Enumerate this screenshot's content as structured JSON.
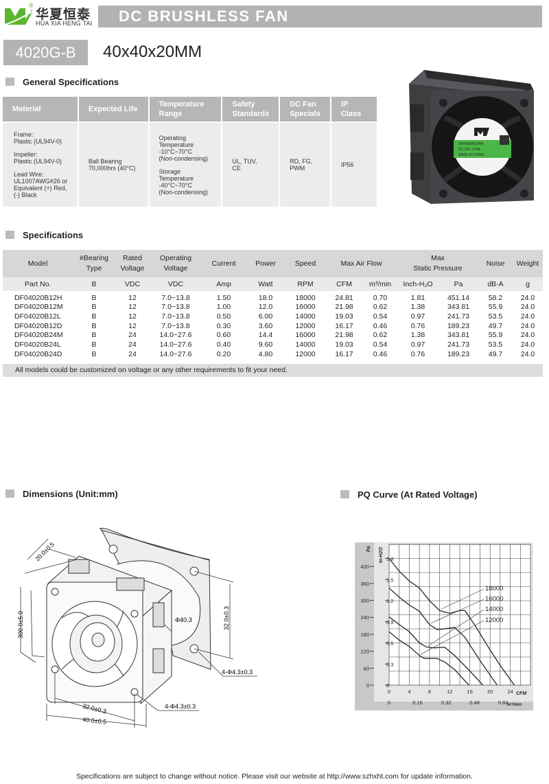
{
  "brand": {
    "name_cn": "华夏恒泰",
    "name_en": "HUA XIA HENG TAI",
    "registered": "®",
    "logo_color": "#5bb531"
  },
  "header": {
    "title": "DC BRUSHLESS FAN"
  },
  "model": {
    "name": "4020G-B",
    "size": "40x40x20MM"
  },
  "general": {
    "heading": "General Specifications",
    "columns": [
      "Material",
      "Expected Life",
      "Temperature Range",
      "Safety Standards",
      "DC Fan Specials",
      "IP Class"
    ],
    "material": [
      "Frame:",
      "Plastic (UL94V-0)",
      "Impeller:",
      "Plastic (UL94V-0)",
      "Lead Wire:",
      "UL1007AWG#26 or",
      "Equivalent (+) Red,",
      "(-) Black"
    ],
    "expected_life": [
      "Ball Bearing",
      "70,000hrs (40°C)"
    ],
    "temperature": [
      "Operating",
      "Temperature",
      "-10°C~70°C",
      "(Non-condensing)",
      "Storage",
      "Temperature",
      "-40°C~70°C",
      "(Non-condensing)"
    ],
    "safety": [
      "UL, TUV,",
      "CE"
    ],
    "specials": [
      "RD, FG,",
      "PWM"
    ],
    "ip_class": "IP56"
  },
  "product_photo": {
    "label_lines": [
      "DF04020B12HA",
      "DC 12V  1.50A",
      "MADE IN CHINA"
    ],
    "label_color": "#4cb748"
  },
  "specs": {
    "heading": "Specifications",
    "header": [
      [
        "Model"
      ],
      [
        "#Bearing",
        "Type"
      ],
      [
        "Rated",
        "Voltage"
      ],
      [
        "Operating",
        "Voltage"
      ],
      [
        "Current"
      ],
      [
        "Power"
      ],
      [
        "Speed"
      ],
      [
        "Max  Air  Flow"
      ],
      [
        "Max",
        "Static  Pressure"
      ],
      [
        "Noise"
      ],
      [
        "Weight"
      ]
    ],
    "units": [
      "Part No.",
      "B",
      "VDC",
      "VDC",
      "Amp",
      "Watt",
      "RPM",
      "CFM",
      "m³/min",
      "Inch-H₂O",
      "Pa",
      "dB-A",
      "g"
    ],
    "rows": [
      [
        "DF04020B12H",
        "B",
        "12",
        "7.0~13.8",
        "1.50",
        "18.0",
        "18000",
        "24.81",
        "0.70",
        "1.81",
        "451.14",
        "58.2",
        "24.0"
      ],
      [
        "DF04020B12M",
        "B",
        "12",
        "7.0~13.8",
        "1.00",
        "12.0",
        "16000",
        "21.98",
        "0.62",
        "1.38",
        "343.81",
        "55.9",
        "24.0"
      ],
      [
        "DF04020B12L",
        "B",
        "12",
        "7.0~13.8",
        "0.50",
        "6.00",
        "14000",
        "19.03",
        "0.54",
        "0.97",
        "241.73",
        "53.5",
        "24.0"
      ],
      [
        "DF04020B12D",
        "B",
        "12",
        "7.0~13.8",
        "0.30",
        "3.60",
        "12000",
        "16.17",
        "0.46",
        "0.76",
        "189.23",
        "49.7",
        "24.0"
      ],
      [
        "DF04020B24M",
        "B",
        "24",
        "14.0~27.6",
        "0.60",
        "14.4",
        "16000",
        "21.98",
        "0.62",
        "1.38",
        "343.81",
        "55.9",
        "24.0"
      ],
      [
        "DF04020B24L",
        "B",
        "24",
        "14.0~27.6",
        "0.40",
        "9.60",
        "14000",
        "19.03",
        "0.54",
        "0.97",
        "241.73",
        "53.5",
        "24.0"
      ],
      [
        "DF04020B24D",
        "B",
        "24",
        "14.0~27.6",
        "0.20",
        "4.80",
        "12000",
        "16.17",
        "0.46",
        "0.76",
        "189.23",
        "49.7",
        "24.0"
      ]
    ],
    "note": "All models could be customized on voltage or any other requirements to fit your need."
  },
  "dimensions": {
    "heading": "Dimensions (Unit:mm)",
    "labels": {
      "depth": "20.0±0.5",
      "lead": "300.0±5.0",
      "hole_pitch_v": "32.0±0.3",
      "bore": "Φ40.3",
      "holes_back": "4-Φ4.3±0.3",
      "holes_front": "4-Φ4.3±0.3",
      "hole_pitch_h": "32.0±0.3",
      "width": "40.0±0.5"
    }
  },
  "pq": {
    "heading": "PQ Curve (At Rated Voltage)"
  },
  "chart_data": {
    "type": "line",
    "title": "PQ Curve (At Rated Voltage)",
    "xlabel": "CFM",
    "x2label": "m³/min",
    "ylabel": "In-H2O",
    "y2label": "Pa",
    "xlim": [
      0,
      28
    ],
    "ylim": [
      0,
      2.0
    ],
    "x_ticks": [
      "0",
      "4",
      "8",
      "12",
      "16",
      "20",
      "24"
    ],
    "x2_ticks": [
      "0",
      "0.16",
      "0.32",
      "0.48",
      "0.64"
    ],
    "y_ticks": [
      "0",
      "0.3",
      "0.6",
      "0.9",
      "1.2",
      "1.5",
      "1.8"
    ],
    "y2_ticks": [
      "0",
      "60",
      "120",
      "180",
      "240",
      "300",
      "360",
      "420"
    ],
    "grid": true,
    "series": [
      {
        "name": "18000",
        "points": [
          [
            0,
            1.8
          ],
          [
            2,
            1.62
          ],
          [
            4,
            1.48
          ],
          [
            6,
            1.38
          ],
          [
            8,
            1.2
          ],
          [
            10,
            1.06
          ],
          [
            12,
            1.02
          ],
          [
            14,
            1.06
          ],
          [
            15,
            1.06
          ],
          [
            17,
            0.85
          ],
          [
            20,
            0.5
          ],
          [
            22,
            0.28
          ],
          [
            24.8,
            0
          ]
        ]
      },
      {
        "name": "16000",
        "points": [
          [
            0,
            1.38
          ],
          [
            2,
            1.25
          ],
          [
            4,
            1.14
          ],
          [
            6,
            1.05
          ],
          [
            8,
            0.86
          ],
          [
            9.5,
            0.79
          ],
          [
            11,
            0.8
          ],
          [
            13,
            0.82
          ],
          [
            15,
            0.68
          ],
          [
            18,
            0.35
          ],
          [
            21.4,
            0
          ]
        ]
      },
      {
        "name": "14000",
        "points": [
          [
            0,
            0.97
          ],
          [
            2,
            0.86
          ],
          [
            4,
            0.76
          ],
          [
            6,
            0.6
          ],
          [
            7.5,
            0.54
          ],
          [
            9,
            0.53
          ],
          [
            11,
            0.54
          ],
          [
            13,
            0.42
          ],
          [
            16,
            0.2
          ],
          [
            18.6,
            0
          ]
        ]
      },
      {
        "name": "12000",
        "points": [
          [
            0,
            0.76
          ],
          [
            2,
            0.64
          ],
          [
            4,
            0.55
          ],
          [
            6,
            0.42
          ],
          [
            7,
            0.38
          ],
          [
            9.5,
            0.38
          ],
          [
            11,
            0.33
          ],
          [
            13,
            0.22
          ],
          [
            15.8,
            0
          ]
        ]
      }
    ]
  },
  "footer": "Specifications are subject to change without notice. Please visit our website at http://www.szhxht.com for update information."
}
